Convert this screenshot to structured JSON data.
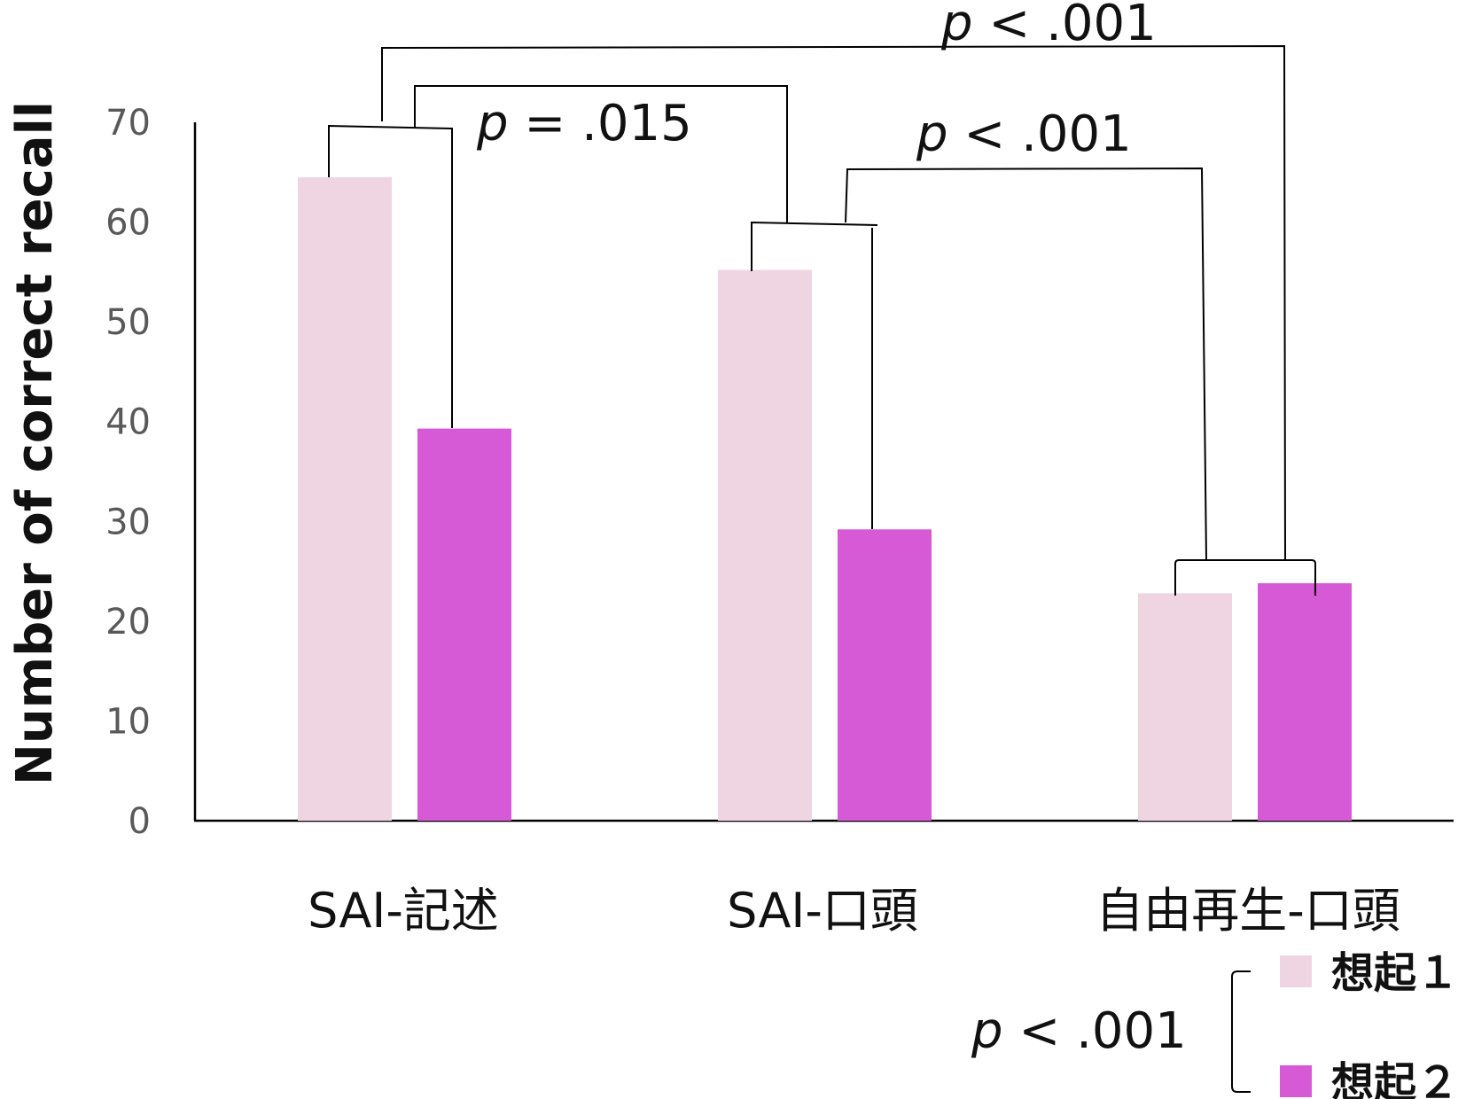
{
  "chart_data": {
    "type": "bar",
    "title": "",
    "xlabel": "",
    "ylabel": "Number of correct recall",
    "ylim": [
      0,
      70
    ],
    "yticks": [
      "0",
      "10",
      "20",
      "30",
      "40",
      "50",
      "60",
      "70"
    ],
    "grid": false,
    "legend_position": "bottom-right",
    "categories": [
      "SAI-記述",
      "SAI-口頭",
      "自由再生-口頭"
    ],
    "series": [
      {
        "name": "想起１",
        "color": "#efd5e2",
        "values": [
          64.5,
          55.2,
          22.8
        ]
      },
      {
        "name": "想起２",
        "color": "#d659d6",
        "values": [
          39.3,
          29.2,
          23.8
        ]
      }
    ],
    "annotations": [
      {
        "p": "p",
        "rest": " < .001"
      },
      {
        "p": "p",
        "rest": " = .015"
      },
      {
        "p": "p",
        "rest": " < .001"
      },
      {
        "p": "p",
        "rest": " < .001"
      }
    ]
  }
}
